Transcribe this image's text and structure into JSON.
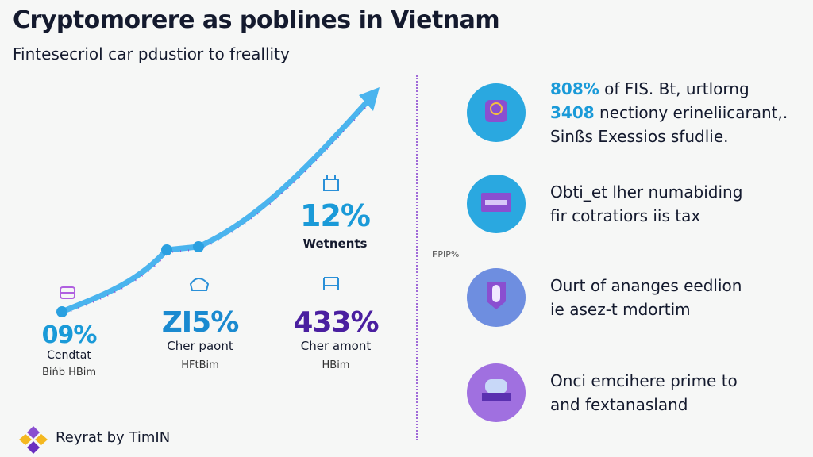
{
  "header": {
    "title": "Cryptomorere as poblines in Vietnam",
    "subtitle": "Fintesecriol car pdustior to freallity"
  },
  "colors": {
    "blue": "#1a9ad8",
    "purple": "#4a1fa0",
    "line": "#4ab4ee",
    "dots": "#8a4fd0"
  },
  "stats": [
    {
      "value": "09%",
      "label": "Cendtat",
      "sub": "Bińb HBim",
      "icon": "wallet-icon",
      "color": "#1a9ad8"
    },
    {
      "value": "ZI5%",
      "label": "Cher paont",
      "sub": "HFtBim",
      "icon": "car-icon",
      "color": "#1a8ad0"
    },
    {
      "value": "433%",
      "label": "Cher amont",
      "sub": "HBim",
      "icon": "bed-icon",
      "color": "#4a1fa0"
    },
    {
      "value": "12%",
      "label": "Wetnents",
      "icon": "bag-icon",
      "color": "#1a9ad8"
    }
  ],
  "side_note": "FPIP%",
  "items": [
    {
      "icon": "brain-icon",
      "circle": "#2aa8e0",
      "lines": [
        [
          "808%",
          " of FIS. Bt, urtlorng"
        ],
        [
          "3408",
          " nectiony erineliicarant,."
        ],
        [
          "",
          "Sinßs Exessios sfudlie."
        ]
      ]
    },
    {
      "icon": "card-icon",
      "circle": "#2aa8e0",
      "lines": [
        [
          "",
          "Obti_et lher numabiding"
        ],
        [
          "",
          "fir cotratiors iis tax"
        ]
      ]
    },
    {
      "icon": "shield-icon",
      "circle": "#6e8ee0",
      "lines": [
        [
          "",
          "Ourt of ananges eedlion"
        ],
        [
          "",
          "ie asez-t mdortim"
        ]
      ]
    },
    {
      "icon": "device-icon",
      "circle": "#a070e0",
      "lines": [
        [
          "",
          "Onci emcihere prime to"
        ],
        [
          "",
          "and fextanasland"
        ]
      ]
    }
  ],
  "footer": {
    "text": "Reyrat by TimIN"
  }
}
